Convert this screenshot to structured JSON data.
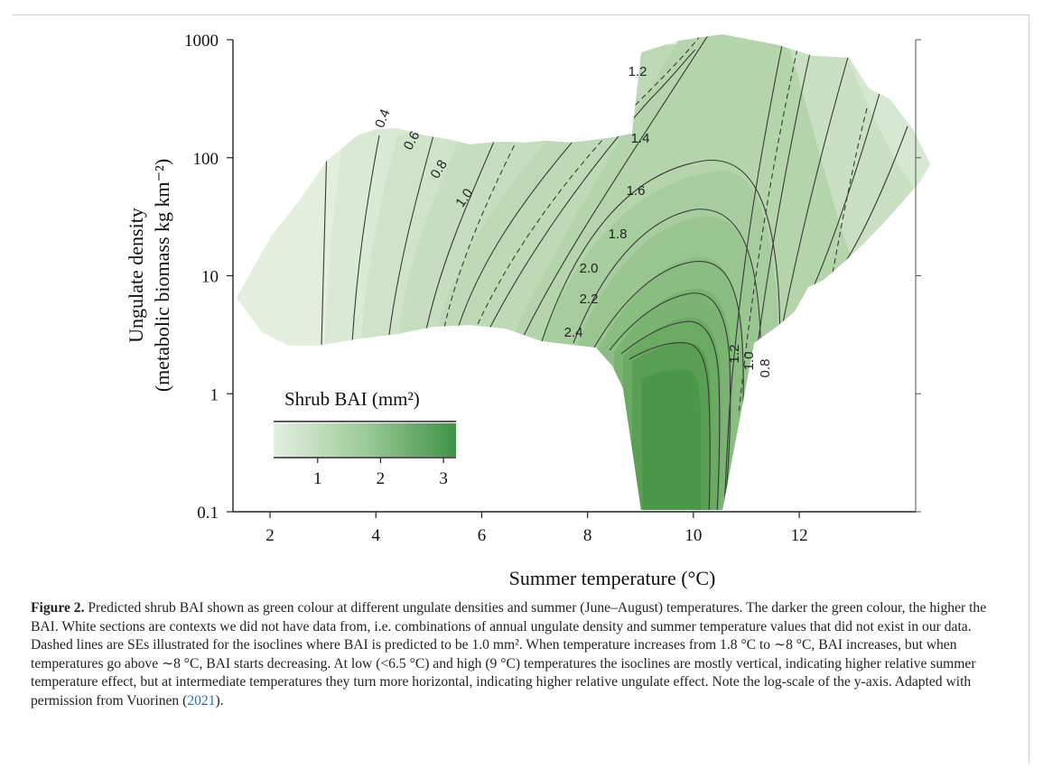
{
  "chart_data": {
    "type": "contour",
    "xlabel": "Summer temperature (°C)",
    "ylabel_line1": "Ungulate density",
    "ylabel_line2": "(metabolic biomass kg km⁻²)",
    "xlim": [
      1.3,
      14.2
    ],
    "ylim": [
      0.1,
      1000
    ],
    "y_scale": "log",
    "x_ticks": [
      "2",
      "4",
      "6",
      "8",
      "10",
      "12"
    ],
    "y_ticks": [
      "0.1",
      "1",
      "10",
      "100",
      "1000"
    ],
    "contour_levels": [
      "0.4",
      "0.6",
      "0.8",
      "1.0",
      "1.2",
      "1.4",
      "1.6",
      "1.8",
      "2.0",
      "2.2",
      "2.4",
      "1.2",
      "1.0",
      "0.8"
    ],
    "fill_colors": {
      "low": "#e4efe1",
      "high": "#3f9347",
      "line": "#303030"
    },
    "legend": {
      "title": "Shrub BAI (mm²)",
      "ticks": [
        "1",
        "2",
        "3"
      ],
      "range": [
        0.3,
        3.2
      ]
    }
  },
  "caption": {
    "label": "Figure 2.",
    "text": " Predicted shrub BAI shown as green colour at different ungulate densities and summer (June–August) temperatures. The darker the green colour, the higher the BAI. White sections are contexts we did not have data from, i.e. combinations of annual ungulate density and summer temperature values that did not exist in our data. Dashed lines are SEs illustrated for the isoclines where BAI is predicted to be 1.0 mm². When temperature increases from 1.8 °C to ∼8 °C, BAI increases, but when temperatures go above ∼8 °C, BAI starts decreasing. At low (<6.5 °C) and high (9 °C) temperatures the isoclines are mostly vertical, indicating higher relative summer temperature effect, but at intermediate temperatures they turn more horizontal, indicating higher relative ungulate effect. Note the log-scale of the y-axis. Adapted with permission from Vuorinen (",
    "cite": "2021",
    "end": ")."
  }
}
